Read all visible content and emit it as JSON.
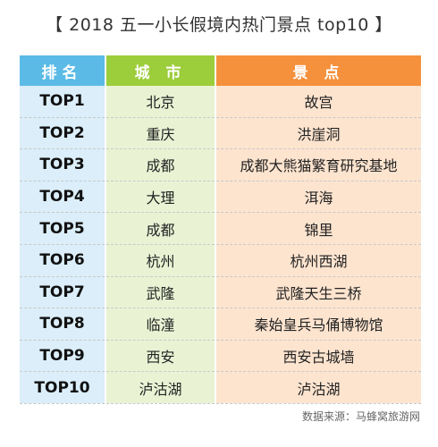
{
  "title": "【 2018 五一小长假境内热门景点 top10 】",
  "table": {
    "headers": {
      "rank": "排名",
      "city": "城 市",
      "spot": "景 点"
    },
    "rows": [
      {
        "rank": "TOP1",
        "city": "北京",
        "spot": "故宫"
      },
      {
        "rank": "TOP2",
        "city": "重庆",
        "spot": "洪崖洞"
      },
      {
        "rank": "TOP3",
        "city": "成都",
        "spot": "成都大熊猫繁育研究基地"
      },
      {
        "rank": "TOP4",
        "city": "大理",
        "spot": "洱海"
      },
      {
        "rank": "TOP5",
        "city": "成都",
        "spot": "锦里"
      },
      {
        "rank": "TOP6",
        "city": "杭州",
        "spot": "杭州西湖"
      },
      {
        "rank": "TOP7",
        "city": "武隆",
        "spot": "武隆天生三桥"
      },
      {
        "rank": "TOP8",
        "city": "临潼",
        "spot": "秦始皇兵马俑博物馆"
      },
      {
        "rank": "TOP9",
        "city": "西安",
        "spot": "西安古城墙"
      },
      {
        "rank": "TOP10",
        "city": "泸沽湖",
        "spot": "泸沽湖"
      }
    ]
  },
  "source": "数据来源：马蜂窝旅游网",
  "colors": {
    "rank_header": "#5bbbe6",
    "city_header": "#9ccd3a",
    "spot_header": "#f5913c",
    "rank_cell": "#dbeef9",
    "city_cell": "#e9f3d4",
    "spot_cell": "#fde4cf"
  }
}
